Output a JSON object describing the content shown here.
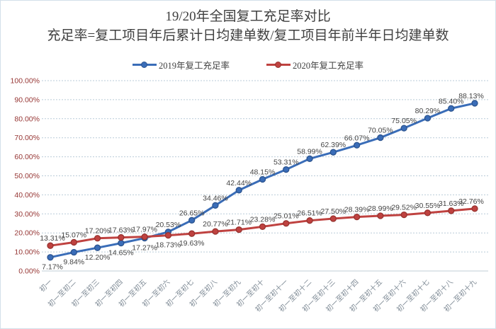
{
  "header": {
    "title": "19/20年全国复工充足率对比",
    "subtitle": "充足率=复工项目年后累计日均建单数/复工项目年前半年日均建单数"
  },
  "chart_data": {
    "type": "line",
    "title": "19/20年全国复工充足率对比",
    "subtitle": "充足率=复工项目年后累计日均建单数/复工项目年前半年日均建单数",
    "categories": [
      "初一",
      "初一至初二",
      "初一至初三",
      "初一至初四",
      "初一至初五",
      "初一至初六",
      "初一至初七",
      "初一至初八",
      "初一至初九",
      "初一至初十",
      "初一至初十一",
      "初一至初十二",
      "初一至初十三",
      "初一至初十四",
      "初一至初十五",
      "初一至初十六",
      "初一至初十七",
      "初一至初十八",
      "初一至初十九"
    ],
    "series": [
      {
        "name": "2019年复工充足率",
        "color": "#3a6db8",
        "marker_stroke": "#2c548f",
        "values": [
          7.17,
          9.84,
          12.2,
          14.65,
          17.27,
          20.53,
          26.65,
          34.46,
          42.44,
          48.15,
          53.31,
          58.99,
          62.39,
          66.07,
          70.05,
          75.05,
          80.29,
          85.4,
          88.13
        ],
        "label_side": [
          "below",
          "below",
          "below",
          "below",
          "below",
          "above",
          "above",
          "above",
          "above",
          "above",
          "above",
          "above",
          "above",
          "above",
          "above",
          "above",
          "above",
          "above",
          "above"
        ]
      },
      {
        "name": "2020年复工充足率",
        "color": "#bf4240",
        "marker_stroke": "#97332f",
        "values": [
          13.31,
          15.07,
          17.2,
          17.63,
          17.97,
          18.73,
          19.63,
          20.77,
          21.71,
          23.28,
          25.01,
          26.51,
          27.5,
          28.39,
          28.99,
          29.52,
          30.55,
          31.63,
          32.76
        ],
        "label_side": [
          "above",
          "above",
          "above",
          "above",
          "above",
          "below",
          "below",
          "above",
          "above",
          "above",
          "above",
          "above",
          "above",
          "above",
          "above",
          "above",
          "above",
          "above",
          "above"
        ]
      }
    ],
    "xlabel": "",
    "ylabel": "",
    "ylim": [
      0,
      100
    ],
    "y_axis": {
      "min": 0,
      "max": 100,
      "step": 10,
      "tick_labels": [
        "0.00%",
        "10.00%",
        "20.00%",
        "30.00%",
        "40.00%",
        "50.00%",
        "60.00%",
        "70.00%",
        "80.00%",
        "90.00%",
        "100.00%"
      ]
    },
    "grid": true,
    "legend_position": "top",
    "value_suffix": "%"
  },
  "style_colors": {
    "grid": "#b9cbd8",
    "axis_line": "#c0ccd4",
    "y_tick_label": "#963634",
    "x_tick_label": "#7e8a95",
    "data_label": "#444444",
    "border": "#d3dfea"
  }
}
